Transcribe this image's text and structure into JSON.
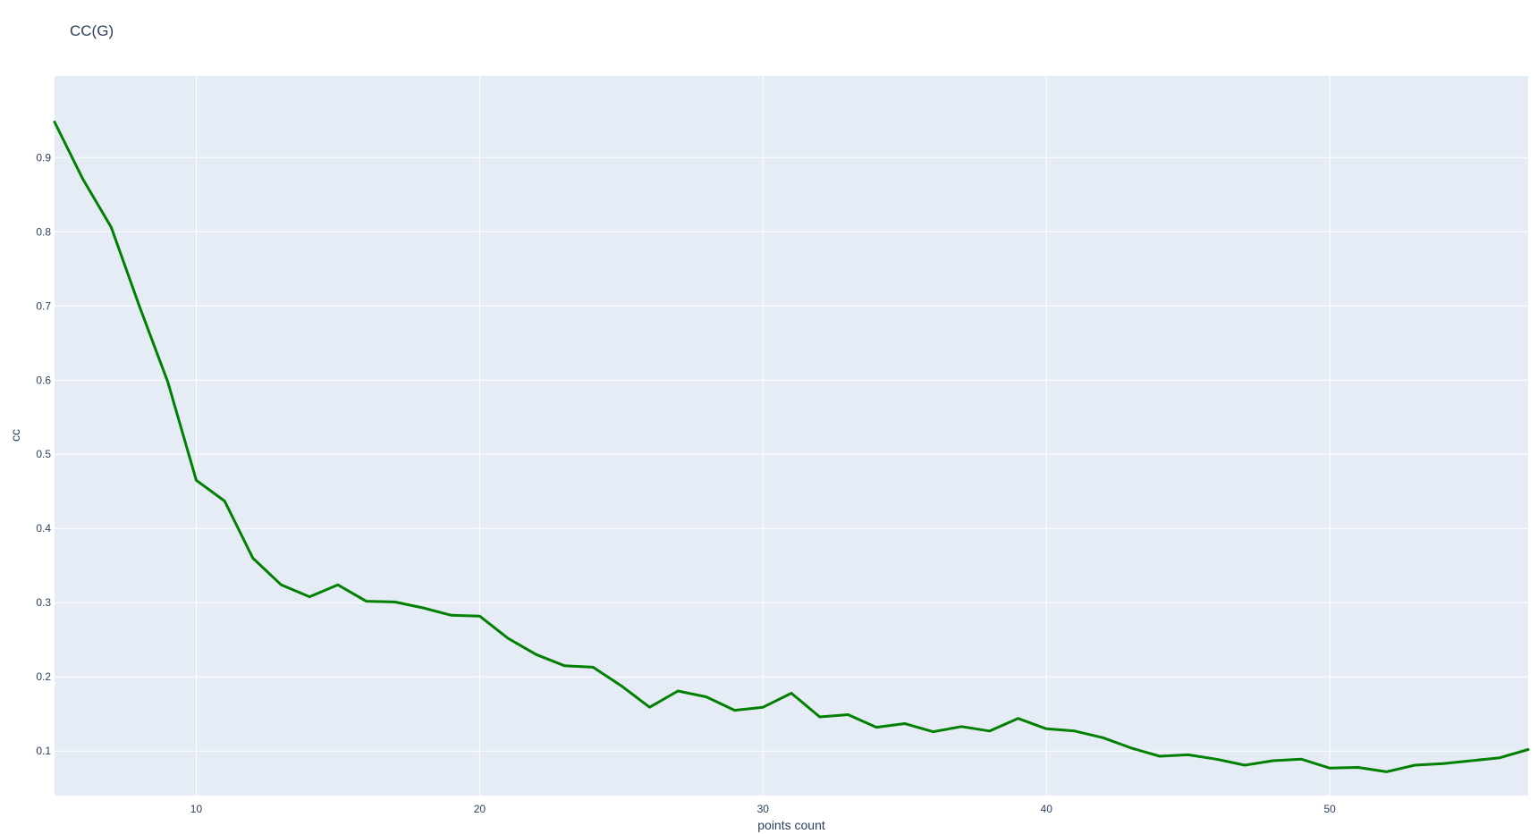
{
  "chart_data": {
    "type": "line",
    "title": "CC(G)",
    "xlabel": "points count",
    "ylabel": "cc",
    "xlim": [
      5,
      57
    ],
    "ylim": [
      0.04,
      1.01
    ],
    "x_ticks": [
      10,
      20,
      30,
      40,
      50
    ],
    "y_ticks": [
      0.1,
      0.2,
      0.3,
      0.4,
      0.5,
      0.6,
      0.7,
      0.8,
      0.9
    ],
    "y_tick_labels": [
      "0.1",
      "0.2",
      "0.3",
      "0.4",
      "0.5",
      "0.6",
      "0.7",
      "0.8",
      "0.9"
    ],
    "grid": true,
    "plot_background": "#E5ECF6",
    "grid_color": "#ffffff",
    "text_color": "#2a3f5f",
    "series": [
      {
        "color": "#008000",
        "x": [
          5,
          6,
          7,
          8,
          9,
          10,
          11,
          12,
          13,
          14,
          15,
          16,
          17,
          18,
          19,
          20,
          21,
          22,
          23,
          24,
          25,
          26,
          27,
          28,
          29,
          30,
          31,
          32,
          33,
          34,
          35,
          36,
          37,
          38,
          39,
          40,
          41,
          42,
          43,
          44,
          45,
          46,
          47,
          48,
          49,
          50,
          51,
          52,
          53,
          54,
          55,
          56,
          57
        ],
        "y": [
          0.948,
          0.871,
          0.806,
          0.699,
          0.597,
          0.465,
          0.437,
          0.36,
          0.324,
          0.308,
          0.324,
          0.302,
          0.301,
          0.293,
          0.283,
          0.282,
          0.252,
          0.23,
          0.215,
          0.213,
          0.188,
          0.159,
          0.181,
          0.173,
          0.155,
          0.159,
          0.178,
          0.146,
          0.149,
          0.132,
          0.137,
          0.126,
          0.133,
          0.127,
          0.144,
          0.13,
          0.127,
          0.118,
          0.104,
          0.093,
          0.095,
          0.089,
          0.081,
          0.087,
          0.089,
          0.077,
          0.078,
          0.072,
          0.081,
          0.083,
          0.087,
          0.091,
          0.102
        ]
      }
    ]
  }
}
